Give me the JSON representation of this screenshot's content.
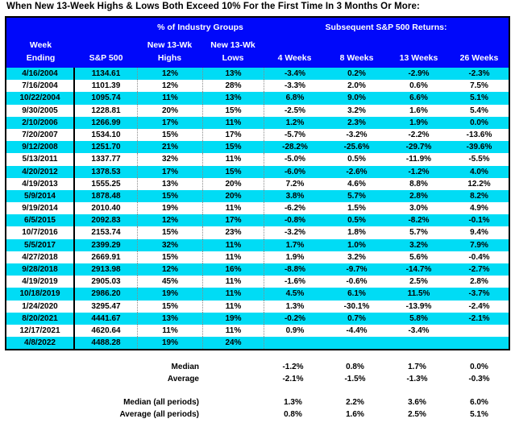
{
  "colors": {
    "header_blue": "#0008fa",
    "row_cyan": "#00dcf5",
    "header_text": "#ffffff",
    "body_text": "#000000",
    "border": "#000000"
  },
  "chart_data": {
    "type": "table",
    "title": "When New 13-Week Highs & Lows Both Exceed 10% For the First Time In 3 Months Or More:",
    "group_headers": [
      "% of Industry Groups",
      "Subsequent S&P 500 Returns:"
    ],
    "columns": [
      "Week Ending",
      "S&P 500",
      "New 13-Wk Highs",
      "New 13-Wk Lows",
      "4 Weeks",
      "8 Weeks",
      "13 Weeks",
      "26 Weeks"
    ],
    "column_lines": [
      [
        "Week",
        "Ending"
      ],
      [
        "",
        "S&P 500"
      ],
      [
        "New 13-Wk",
        "Highs"
      ],
      [
        "New 13-Wk",
        "Lows"
      ],
      [
        "",
        "4 Weeks"
      ],
      [
        "",
        "8 Weeks"
      ],
      [
        "",
        "13 Weeks"
      ],
      [
        "",
        "26 Weeks"
      ]
    ],
    "column_ids": [
      "week-ending",
      "sp500",
      "new-13wk-highs",
      "new-13wk-lows",
      "ret-4-weeks",
      "ret-8-weeks",
      "ret-13-weeks",
      "ret-26-weeks"
    ],
    "rows": [
      [
        "4/16/2004",
        "1134.61",
        "12%",
        "13%",
        "-3.4%",
        "0.2%",
        "-2.9%",
        "-2.3%"
      ],
      [
        "7/16/2004",
        "1101.39",
        "12%",
        "28%",
        "-3.3%",
        "2.0%",
        "0.6%",
        "7.5%"
      ],
      [
        "10/22/2004",
        "1095.74",
        "11%",
        "13%",
        "6.8%",
        "9.0%",
        "6.6%",
        "5.1%"
      ],
      [
        "9/30/2005",
        "1228.81",
        "20%",
        "15%",
        "-2.5%",
        "3.2%",
        "1.6%",
        "5.4%"
      ],
      [
        "2/10/2006",
        "1266.99",
        "17%",
        "11%",
        "1.2%",
        "2.3%",
        "1.9%",
        "0.0%"
      ],
      [
        "7/20/2007",
        "1534.10",
        "15%",
        "17%",
        "-5.7%",
        "-3.2%",
        "-2.2%",
        "-13.6%"
      ],
      [
        "9/12/2008",
        "1251.70",
        "21%",
        "15%",
        "-28.2%",
        "-25.6%",
        "-29.7%",
        "-39.6%"
      ],
      [
        "5/13/2011",
        "1337.77",
        "32%",
        "11%",
        "-5.0%",
        "0.5%",
        "-11.9%",
        "-5.5%"
      ],
      [
        "4/20/2012",
        "1378.53",
        "17%",
        "15%",
        "-6.0%",
        "-2.6%",
        "-1.2%",
        "4.0%"
      ],
      [
        "4/19/2013",
        "1555.25",
        "13%",
        "20%",
        "7.2%",
        "4.6%",
        "8.8%",
        "12.2%"
      ],
      [
        "5/9/2014",
        "1878.48",
        "15%",
        "20%",
        "3.8%",
        "5.7%",
        "2.8%",
        "8.2%"
      ],
      [
        "9/19/2014",
        "2010.40",
        "19%",
        "11%",
        "-6.2%",
        "1.5%",
        "3.0%",
        "4.9%"
      ],
      [
        "6/5/2015",
        "2092.83",
        "12%",
        "17%",
        "-0.8%",
        "0.5%",
        "-8.2%",
        "-0.1%"
      ],
      [
        "10/7/2016",
        "2153.74",
        "15%",
        "23%",
        "-3.2%",
        "1.8%",
        "5.7%",
        "9.4%"
      ],
      [
        "5/5/2017",
        "2399.29",
        "32%",
        "11%",
        "1.7%",
        "1.0%",
        "3.2%",
        "7.9%"
      ],
      [
        "4/27/2018",
        "2669.91",
        "15%",
        "11%",
        "1.9%",
        "3.2%",
        "5.6%",
        "-0.4%"
      ],
      [
        "9/28/2018",
        "2913.98",
        "12%",
        "16%",
        "-8.8%",
        "-9.7%",
        "-14.7%",
        "-2.7%"
      ],
      [
        "4/19/2019",
        "2905.03",
        "45%",
        "11%",
        "-1.6%",
        "-0.6%",
        "2.5%",
        "2.8%"
      ],
      [
        "10/18/2019",
        "2986.20",
        "19%",
        "11%",
        "4.5%",
        "6.1%",
        "11.5%",
        "-3.7%"
      ],
      [
        "1/24/2020",
        "3295.47",
        "15%",
        "11%",
        "1.3%",
        "-30.1%",
        "-13.9%",
        "-2.4%"
      ],
      [
        "8/20/2021",
        "4441.67",
        "13%",
        "19%",
        "-0.2%",
        "0.7%",
        "5.8%",
        "-2.1%"
      ],
      [
        "12/17/2021",
        "4620.64",
        "11%",
        "11%",
        "0.9%",
        "-4.4%",
        "-3.4%",
        ""
      ],
      [
        "4/8/2022",
        "4488.28",
        "19%",
        "24%",
        "",
        "",
        "",
        ""
      ]
    ],
    "summary": [
      {
        "label": "Median",
        "values": [
          "-1.2%",
          "0.8%",
          "1.7%",
          "0.0%"
        ],
        "group": 1
      },
      {
        "label": "Average",
        "values": [
          "-2.1%",
          "-1.5%",
          "-1.3%",
          "-0.3%"
        ],
        "group": 1
      },
      {
        "label": "Median (all periods)",
        "values": [
          "1.3%",
          "2.2%",
          "3.6%",
          "6.0%"
        ],
        "group": 2
      },
      {
        "label": "Average (all periods)",
        "values": [
          "0.8%",
          "1.6%",
          "2.5%",
          "5.1%"
        ],
        "group": 2
      }
    ]
  }
}
